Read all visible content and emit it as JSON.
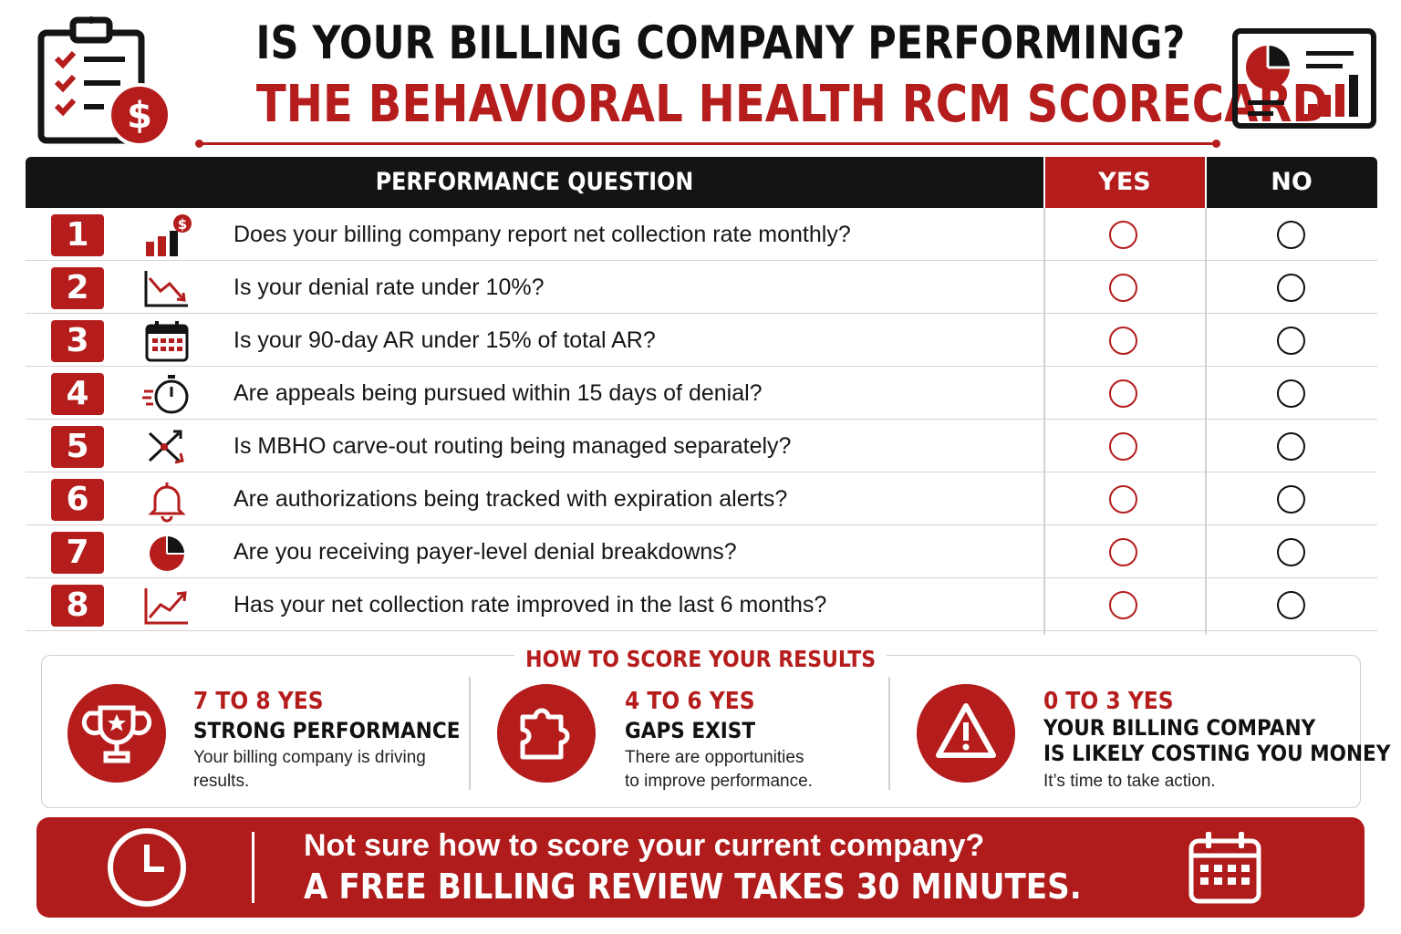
{
  "header": {
    "title_line1": "IS YOUR BILLING COMPANY PERFORMING?",
    "title_line2": "THE BEHAVIORAL HEALTH RCM SCORECARD",
    "left_icon": "checklist-dollar-icon",
    "right_icon": "dashboard-chart-icon"
  },
  "table": {
    "headers": {
      "question": "PERFORMANCE QUESTION",
      "yes": "YES",
      "no": "NO"
    },
    "rows": [
      {
        "number": "1",
        "icon": "bar-chart-dollar-icon",
        "question": "Does your billing company report net collection rate monthly?"
      },
      {
        "number": "2",
        "icon": "trend-down-icon",
        "question": "Is your denial rate under 10%?"
      },
      {
        "number": "3",
        "icon": "calendar-icon",
        "question": "Is your 90-day AR under 15% of total AR?"
      },
      {
        "number": "4",
        "icon": "stopwatch-icon",
        "question": "Are appeals being pursued within 15 days of denial?"
      },
      {
        "number": "5",
        "icon": "routing-arrows-icon",
        "question": "Is MBHO carve-out routing being managed separately?"
      },
      {
        "number": "6",
        "icon": "bell-icon",
        "question": "Are authorizations being tracked with expiration alerts?"
      },
      {
        "number": "7",
        "icon": "pie-chart-icon",
        "question": "Are you receiving payer-level denial breakdowns?"
      },
      {
        "number": "8",
        "icon": "trend-up-icon",
        "question": "Has your net collection rate improved in the last 6 months?"
      }
    ]
  },
  "scoring": {
    "title": "HOW TO SCORE YOUR RESULTS",
    "tiers": [
      {
        "icon": "trophy-icon",
        "range": "7 TO 8 YES",
        "heading": "STRONG PERFORMANCE",
        "desc1": "Your billing company is driving",
        "desc2": "results."
      },
      {
        "icon": "puzzle-icon",
        "range": "4 TO 6 YES",
        "heading": "GAPS EXIST",
        "desc1": "There are opportunities",
        "desc2": "to improve performance."
      },
      {
        "icon": "warning-icon",
        "range": "0 TO 3 YES",
        "heading1": "YOUR BILLING COMPANY",
        "heading2": "IS LIKELY COSTING YOU MONEY",
        "desc1": "It’s time to take action."
      }
    ]
  },
  "cta": {
    "line1": "Not sure how to score your current company?",
    "line2": "A FREE BILLING REVIEW TAKES 30 MINUTES.",
    "left_icon": "clock-icon",
    "right_icon": "calendar-icon"
  },
  "colors": {
    "accent": "#b51d1d",
    "dark": "#141414"
  }
}
